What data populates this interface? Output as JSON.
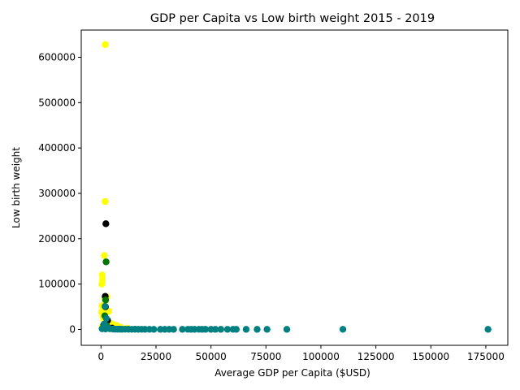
{
  "chart_data": {
    "type": "scatter",
    "title": "GDP per Capita vs Low birth weight 2015 - 2019",
    "xlabel": "Average GDP per Capita ($USD)",
    "ylabel": "Low birth weight",
    "xlim": [
      -9000,
      185000
    ],
    "ylim": [
      -35000,
      660000
    ],
    "xticks": [
      0,
      25000,
      50000,
      75000,
      100000,
      125000,
      150000,
      175000
    ],
    "yticks": [
      0,
      100000,
      200000,
      300000,
      400000,
      500000,
      600000
    ],
    "grid": false,
    "series": [
      {
        "color": "#ffff00",
        "points": [
          [
            1900,
            628000
          ],
          [
            1800,
            282000
          ],
          [
            1500,
            163000
          ],
          [
            500,
            120000
          ],
          [
            700,
            110000
          ],
          [
            300,
            100000
          ],
          [
            2500,
            72000
          ],
          [
            1600,
            68000
          ],
          [
            1900,
            62000
          ],
          [
            500,
            52000
          ],
          [
            1000,
            45000
          ],
          [
            3500,
            40000
          ],
          [
            200,
            38000
          ],
          [
            800,
            28000
          ],
          [
            1400,
            22000
          ],
          [
            2200,
            18000
          ],
          [
            3000,
            15000
          ],
          [
            5000,
            12000
          ],
          [
            7000,
            9000
          ],
          [
            4000,
            8000
          ],
          [
            9000,
            5000
          ],
          [
            12000,
            3000
          ],
          [
            600,
            6000
          ],
          [
            300,
            3000
          ],
          [
            2800,
            4000
          ]
        ]
      },
      {
        "color": "#000000",
        "points": [
          [
            2200,
            233000
          ],
          [
            1900,
            73000
          ],
          [
            2000,
            50000
          ],
          [
            3000,
            20000
          ],
          [
            1200,
            10000
          ],
          [
            5000,
            3000
          ]
        ]
      },
      {
        "color": "#007700",
        "points": [
          [
            2300,
            149000
          ],
          [
            2100,
            65000
          ],
          [
            1700,
            30000
          ],
          [
            2600,
            8000
          ]
        ]
      },
      {
        "color": "#008080",
        "points": [
          [
            1800,
            51000
          ],
          [
            2400,
            24000
          ],
          [
            1500,
            12000
          ],
          [
            1000,
            5000
          ],
          [
            3000,
            4000
          ],
          [
            500,
            1500
          ],
          [
            2000,
            1000
          ],
          [
            4000,
            1500
          ],
          [
            5500,
            800
          ],
          [
            6500,
            600
          ],
          [
            7500,
            500
          ],
          [
            8500,
            600
          ],
          [
            9500,
            400
          ],
          [
            11000,
            500
          ],
          [
            12500,
            400
          ],
          [
            14000,
            300
          ],
          [
            15500,
            400
          ],
          [
            17000,
            300
          ],
          [
            18500,
            300
          ],
          [
            20000,
            200
          ],
          [
            22000,
            300
          ],
          [
            24000,
            200
          ],
          [
            27000,
            200
          ],
          [
            29000,
            200
          ],
          [
            31000,
            300
          ],
          [
            33000,
            200
          ],
          [
            37000,
            200
          ],
          [
            39500,
            300
          ],
          [
            41000,
            200
          ],
          [
            42500,
            200
          ],
          [
            44500,
            300
          ],
          [
            46000,
            200
          ],
          [
            47500,
            200
          ],
          [
            50000,
            200
          ],
          [
            52000,
            200
          ],
          [
            54500,
            200
          ],
          [
            57500,
            200
          ],
          [
            60000,
            300
          ],
          [
            61500,
            200
          ],
          [
            66000,
            200
          ],
          [
            71000,
            200
          ],
          [
            75500,
            200
          ],
          [
            84500,
            200
          ],
          [
            110000,
            300
          ],
          [
            176000,
            200
          ]
        ]
      }
    ]
  }
}
